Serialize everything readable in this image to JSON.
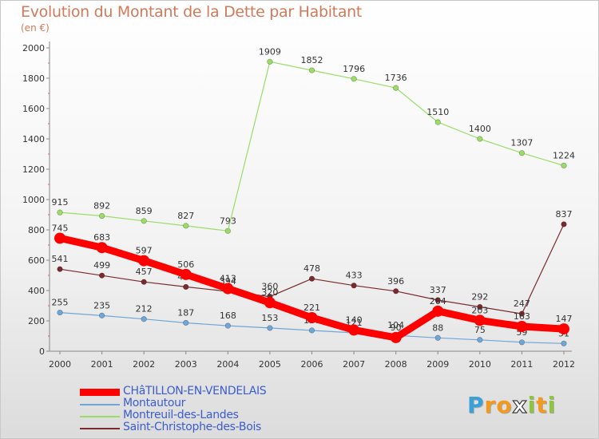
{
  "chart_data": {
    "type": "line",
    "title": "Evolution du Montant de la Dette par Habitant",
    "subtitle": "(en €)",
    "x": [
      "2000",
      "2001",
      "2002",
      "2003",
      "2004",
      "2005",
      "2006",
      "2007",
      "2008",
      "2009",
      "2010",
      "2011",
      "2012"
    ],
    "ylim": [
      0,
      2000
    ],
    "yticks": [
      0,
      200,
      400,
      600,
      800,
      1000,
      1200,
      1400,
      1600,
      1800,
      2000
    ],
    "grid": false,
    "legend_position": "bottom-left",
    "series": [
      {
        "name": "CHâTILLON-EN-VENDELAIS",
        "color": "#ff0000",
        "values": [
          745,
          683,
          597,
          506,
          413,
          320,
          221,
          140,
          90,
          264,
          203,
          163,
          147
        ],
        "labels": [
          "745",
          "683",
          "597",
          "506",
          "413",
          "320",
          "221",
          "140",
          "90",
          "264",
          "203",
          "163",
          "147"
        ]
      },
      {
        "name": "Montautour",
        "color": "#6fa6d8",
        "values": [
          255,
          235,
          212,
          187,
          168,
          153,
          137,
          121,
          104,
          88,
          75,
          59,
          51
        ],
        "labels": [
          "255",
          "235",
          "212",
          "187",
          "168",
          "153",
          "137",
          "121",
          "104",
          "88",
          "75",
          "59",
          "51"
        ]
      },
      {
        "name": "Montreuil-des-Landes",
        "color": "#99dd66",
        "values": [
          915,
          892,
          859,
          827,
          793,
          null,
          null,
          null,
          null,
          null,
          null,
          null,
          null
        ],
        "labels": [
          "915",
          "892",
          "859",
          "827",
          "793",
          "",
          "",
          "",
          "",
          "",
          "",
          "",
          ""
        ]
      },
      {
        "name": "Montreuil-des-Landes",
        "color": "#99dd66",
        "values": [
          null,
          null,
          null,
          null,
          793,
          1909,
          1852,
          1796,
          1736,
          1510,
          1400,
          1307,
          1224
        ],
        "labels": [
          "",
          "",
          "",
          "",
          "",
          "1909",
          "1852",
          "1796",
          "1736",
          "1510",
          "1400",
          "1307",
          "1224"
        ],
        "hide_legend": true
      },
      {
        "name": "Saint-Christophe-des-Bois",
        "color": "#7a2a2e",
        "values": [
          541,
          499,
          457,
          424,
          394,
          360,
          478,
          433,
          396,
          337,
          292,
          247,
          837
        ],
        "labels": [
          "541",
          "499",
          "457",
          "424",
          "394",
          "360",
          "478",
          "433",
          "396",
          "337",
          "292",
          "247",
          "837"
        ]
      }
    ]
  },
  "legend": [
    {
      "label": "CHâTILLON-EN-VENDELAIS",
      "color": "#ff0000",
      "thick": true
    },
    {
      "label": "Montautour",
      "color": "#6fa6d8",
      "thick": false
    },
    {
      "label": "Montreuil-des-Landes",
      "color": "#99dd66",
      "thick": false
    },
    {
      "label": "Saint-Christophe-des-Bois",
      "color": "#7a2a2e",
      "thick": false
    }
  ],
  "logo": {
    "letters": [
      "P",
      "r",
      "o",
      "x",
      "i",
      "t",
      "i"
    ],
    "colors": [
      "#3aa0d8",
      "#f39a1e",
      "#f39a1e",
      "#ffffff",
      "#8cc63f",
      "#f39a1e",
      "#8cc63f"
    ]
  }
}
